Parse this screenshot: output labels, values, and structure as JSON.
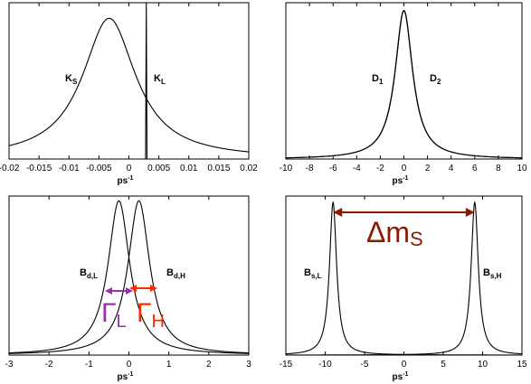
{
  "chart_data": [
    {
      "type": "line",
      "xlabel": "ps",
      "xlabel_sup": "-1",
      "xlim": [
        -0.02,
        0.02
      ],
      "ylim": [
        0,
        1
      ],
      "tick_labels": [
        "-0.02",
        "-0.015",
        "-0.01",
        "-0.005",
        "0",
        "0.005",
        "0.01",
        "0.015",
        "0.02"
      ],
      "tick_values": [
        -0.02,
        -0.015,
        -0.01,
        -0.005,
        0,
        0.005,
        0.01,
        0.015,
        0.02
      ],
      "series": [
        {
          "name": "K",
          "sub": "S",
          "color": "#000000",
          "shape": "lorentzian",
          "center": -0.0033,
          "halfwidth": 0.0054,
          "peak": 0.9
        },
        {
          "name": "K",
          "sub": "L",
          "color": "#000000",
          "shape": "lorentzian",
          "center": 0.0029,
          "halfwidth": 3e-05,
          "peak": 1.0
        }
      ]
    },
    {
      "type": "line",
      "xlabel": "ps",
      "xlabel_sup": "-1",
      "xlim": [
        -10,
        10
      ],
      "ylim": [
        0,
        1
      ],
      "tick_labels": [
        "-10",
        "-8",
        "-6",
        "-4",
        "-2",
        "0",
        "2",
        "4",
        "6",
        "8",
        "10"
      ],
      "tick_values": [
        -10,
        -8,
        -6,
        -4,
        -2,
        0,
        2,
        4,
        6,
        8,
        10
      ],
      "series": [
        {
          "name": "D",
          "sub": "1",
          "color": "#000000",
          "shape": "lorentzian",
          "center": -0.01,
          "halfwidth": 0.9,
          "peak": 0.95
        },
        {
          "name": "D",
          "sub": "2",
          "color": "#000000",
          "shape": "lorentzian",
          "center": 0.01,
          "halfwidth": 0.9,
          "peak": 0.95
        }
      ]
    },
    {
      "type": "line",
      "xlabel": "ps",
      "xlabel_sup": "-1",
      "xlim": [
        -3,
        3
      ],
      "ylim": [
        0,
        1
      ],
      "tick_labels": [
        "-3",
        "-2",
        "-1",
        "0",
        "1",
        "2",
        "3"
      ],
      "tick_values": [
        -3,
        -2,
        -1,
        0,
        1,
        2,
        3
      ],
      "series": [
        {
          "name": "B",
          "sub": "d,L",
          "color": "#000000",
          "shape": "lorentzian",
          "center": -0.25,
          "halfwidth": 0.33,
          "peak": 0.97
        },
        {
          "name": "B",
          "sub": "d,H",
          "color": "#000000",
          "shape": "lorentzian",
          "center": 0.25,
          "halfwidth": 0.33,
          "peak": 0.97
        }
      ],
      "annotations": [
        {
          "text": "Γ",
          "sub": "L",
          "color": "#9b2fae"
        },
        {
          "text": "Γ",
          "sub": "H",
          "color": "#ff2a00"
        }
      ]
    },
    {
      "type": "line",
      "xlabel": "ps",
      "xlabel_sup": "-1",
      "xlim": [
        -15,
        15
      ],
      "ylim": [
        0,
        1
      ],
      "tick_labels": [
        "-15",
        "-10",
        "-5",
        "0",
        "5",
        "10",
        "15"
      ],
      "tick_values": [
        -15,
        -10,
        -5,
        0,
        5,
        10,
        15
      ],
      "series": [
        {
          "name": "B",
          "sub": "s,L",
          "color": "#000000",
          "shape": "lorentzian",
          "center": -9,
          "halfwidth": 0.55,
          "peak": 0.96
        },
        {
          "name": "B",
          "sub": "s,H",
          "color": "#000000",
          "shape": "lorentzian",
          "center": 9,
          "halfwidth": 0.55,
          "peak": 0.96
        }
      ],
      "annotations": [
        {
          "text": "Δm",
          "sub": "S",
          "color": "#8b1a00"
        }
      ]
    }
  ]
}
